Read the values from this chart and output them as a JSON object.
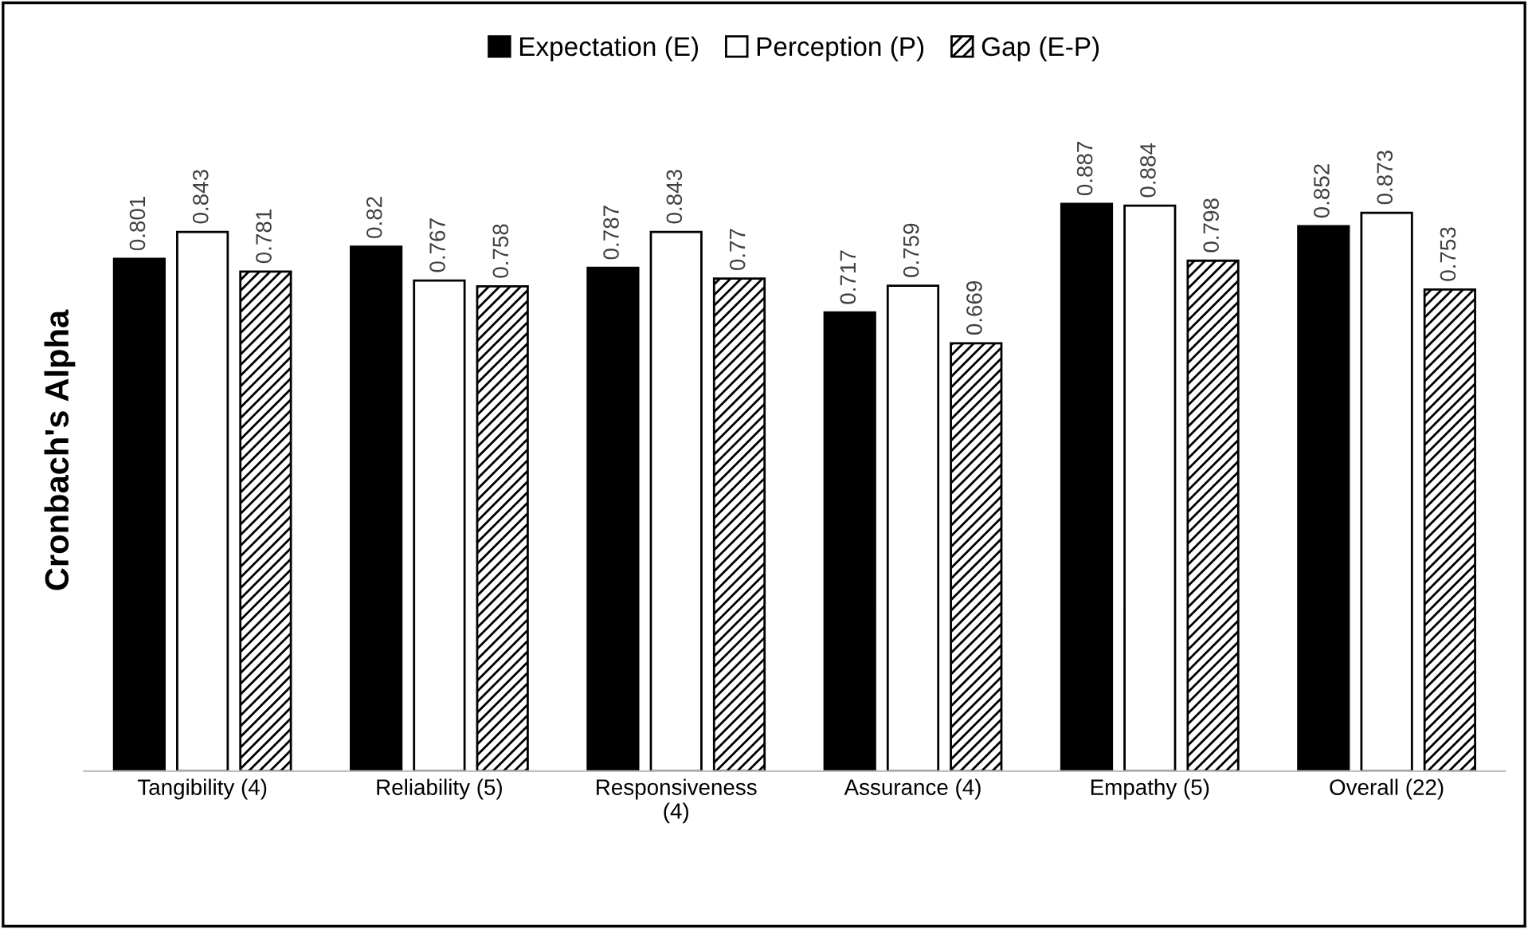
{
  "chart_data": {
    "type": "bar",
    "ylabel": "Cronbach's Alpha",
    "categories": [
      "Tangibility (4)",
      "Reliability (5)",
      "Responsiveness (4)",
      "Assurance (4)",
      "Empathy (5)",
      "Overall (22)"
    ],
    "series": [
      {
        "name": "Expectation (E)",
        "color": "#000000",
        "values": [
          0.801,
          0.82,
          0.787,
          0.717,
          0.887,
          0.852
        ]
      },
      {
        "name": "Perception (P)",
        "color": "#ffffff",
        "values": [
          0.843,
          0.767,
          0.843,
          0.759,
          0.884,
          0.873
        ]
      },
      {
        "name": "Gap (E-P)",
        "color": "#000000",
        "values": [
          0.781,
          0.758,
          0.77,
          0.669,
          0.798,
          0.753
        ]
      }
    ],
    "data_labels": true,
    "legend": "top",
    "grid": false,
    "tick_labels": "x"
  }
}
